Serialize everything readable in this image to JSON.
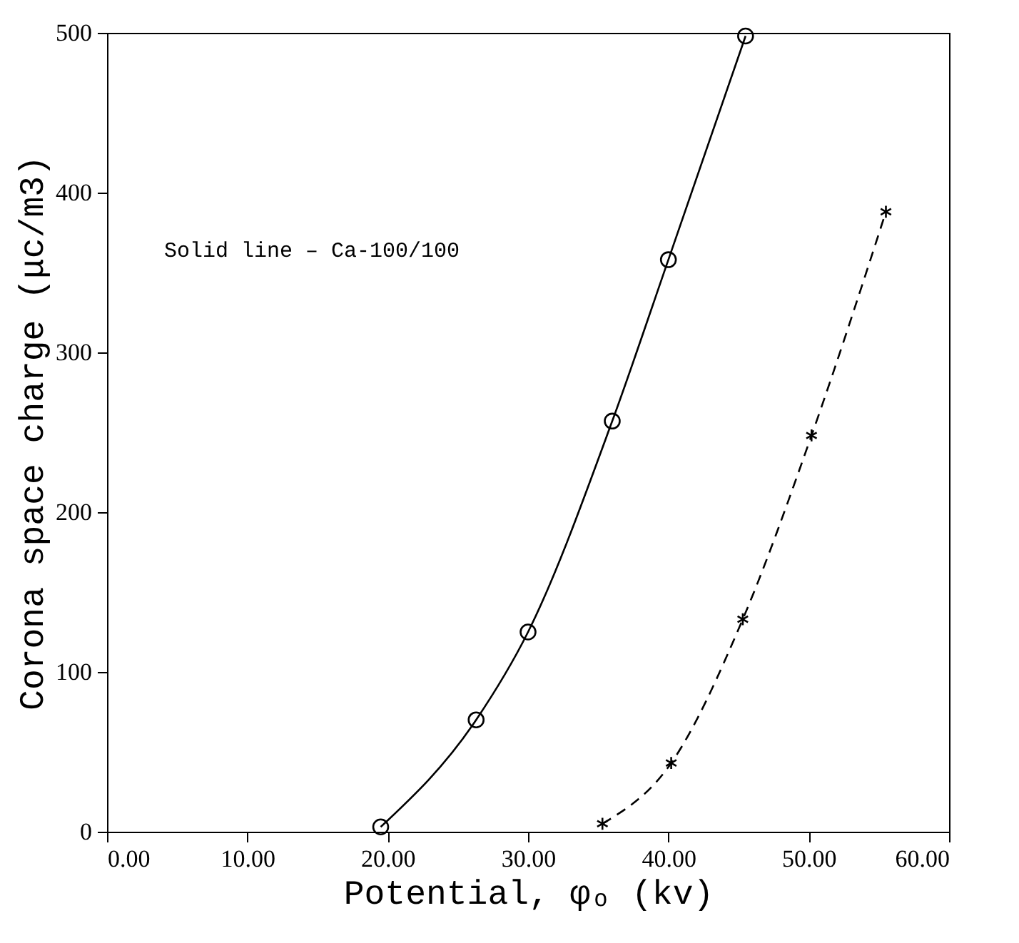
{
  "chart_data": {
    "type": "line",
    "xlabel": "Potential, φₒ (kv)",
    "ylabel": "Corona space charge (μc/m3)",
    "annotations": [
      "Solid line – Ca-100/100"
    ],
    "xlim": [
      0,
      60
    ],
    "ylim": [
      0,
      500
    ],
    "xticks": [
      {
        "value": 0,
        "label": "0.00"
      },
      {
        "value": 10,
        "label": "10.00"
      },
      {
        "value": 20,
        "label": "20.00"
      },
      {
        "value": 30,
        "label": "30.00"
      },
      {
        "value": 40,
        "label": "40.00"
      },
      {
        "value": 50,
        "label": "50.00"
      },
      {
        "value": 60,
        "label": "60.00"
      }
    ],
    "yticks": [
      0,
      100,
      200,
      300,
      400,
      500
    ],
    "grid": false,
    "series": [
      {
        "color": "#000000",
        "marker": "circle",
        "line_style": "solid",
        "x": [
          19.5,
          26.3,
          30,
          36,
          40,
          45.5
        ],
        "values": [
          3,
          70,
          125,
          257,
          358,
          498
        ]
      },
      {
        "color": "#000000",
        "marker": "cross",
        "line_style": "dashed",
        "x": [
          35.3,
          40.2,
          45.3,
          50.2,
          55.5
        ],
        "values": [
          5,
          43,
          133,
          248,
          388
        ]
      }
    ]
  }
}
